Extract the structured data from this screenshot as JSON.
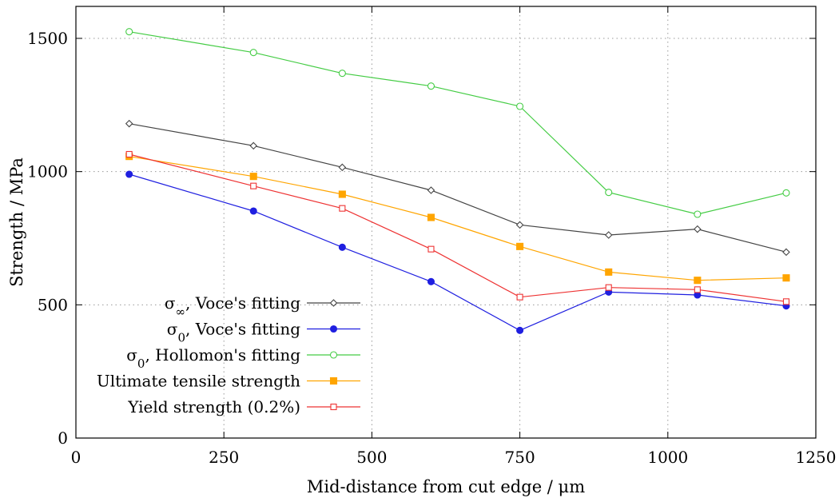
{
  "chart_data": {
    "type": "line",
    "title": "",
    "xlabel": "Mid-distance from cut edge / μm",
    "ylabel": "Strength / MPa",
    "xlim": [
      0,
      1250
    ],
    "ylim": [
      0,
      1620
    ],
    "xticks": [
      0,
      250,
      500,
      750,
      1000,
      1250
    ],
    "yticks": [
      0,
      500,
      1000,
      1500
    ],
    "grid": true,
    "legend_position": "left",
    "x": [
      90,
      300,
      450,
      600,
      750,
      900,
      1050,
      1200
    ],
    "series": [
      {
        "name_main": "σ",
        "name_sub": "∞",
        "name_rest": ", Voce's fitting",
        "color": "#444444",
        "marker": "diamond-open",
        "values": [
          1180,
          1097,
          1016,
          930,
          800,
          762,
          784,
          698
        ]
      },
      {
        "name_main": "σ",
        "name_sub": "0",
        "name_rest": ", Voce's fitting",
        "color": "#1f1fe0",
        "marker": "circle-filled",
        "values": [
          990,
          852,
          716,
          587,
          404,
          548,
          537,
          496
        ]
      },
      {
        "name_main": "σ",
        "name_sub": "0",
        "name_rest": ", Hollomon's fitting",
        "color": "#44cc44",
        "marker": "circle-open",
        "values": [
          1525,
          1447,
          1369,
          1321,
          1245,
          922,
          840,
          920
        ]
      },
      {
        "name_main": "Ultimate tensile strength",
        "name_sub": "",
        "name_rest": "",
        "color": "#ffa500",
        "marker": "square-filled",
        "values": [
          1057,
          982,
          915,
          828,
          719,
          623,
          592,
          601
        ]
      },
      {
        "name_main": "Yield strength (0.2%)",
        "name_sub": "",
        "name_rest": "",
        "color": "#ee3333",
        "marker": "square-open",
        "values": [
          1065,
          946,
          862,
          709,
          529,
          565,
          557,
          512
        ]
      }
    ]
  }
}
